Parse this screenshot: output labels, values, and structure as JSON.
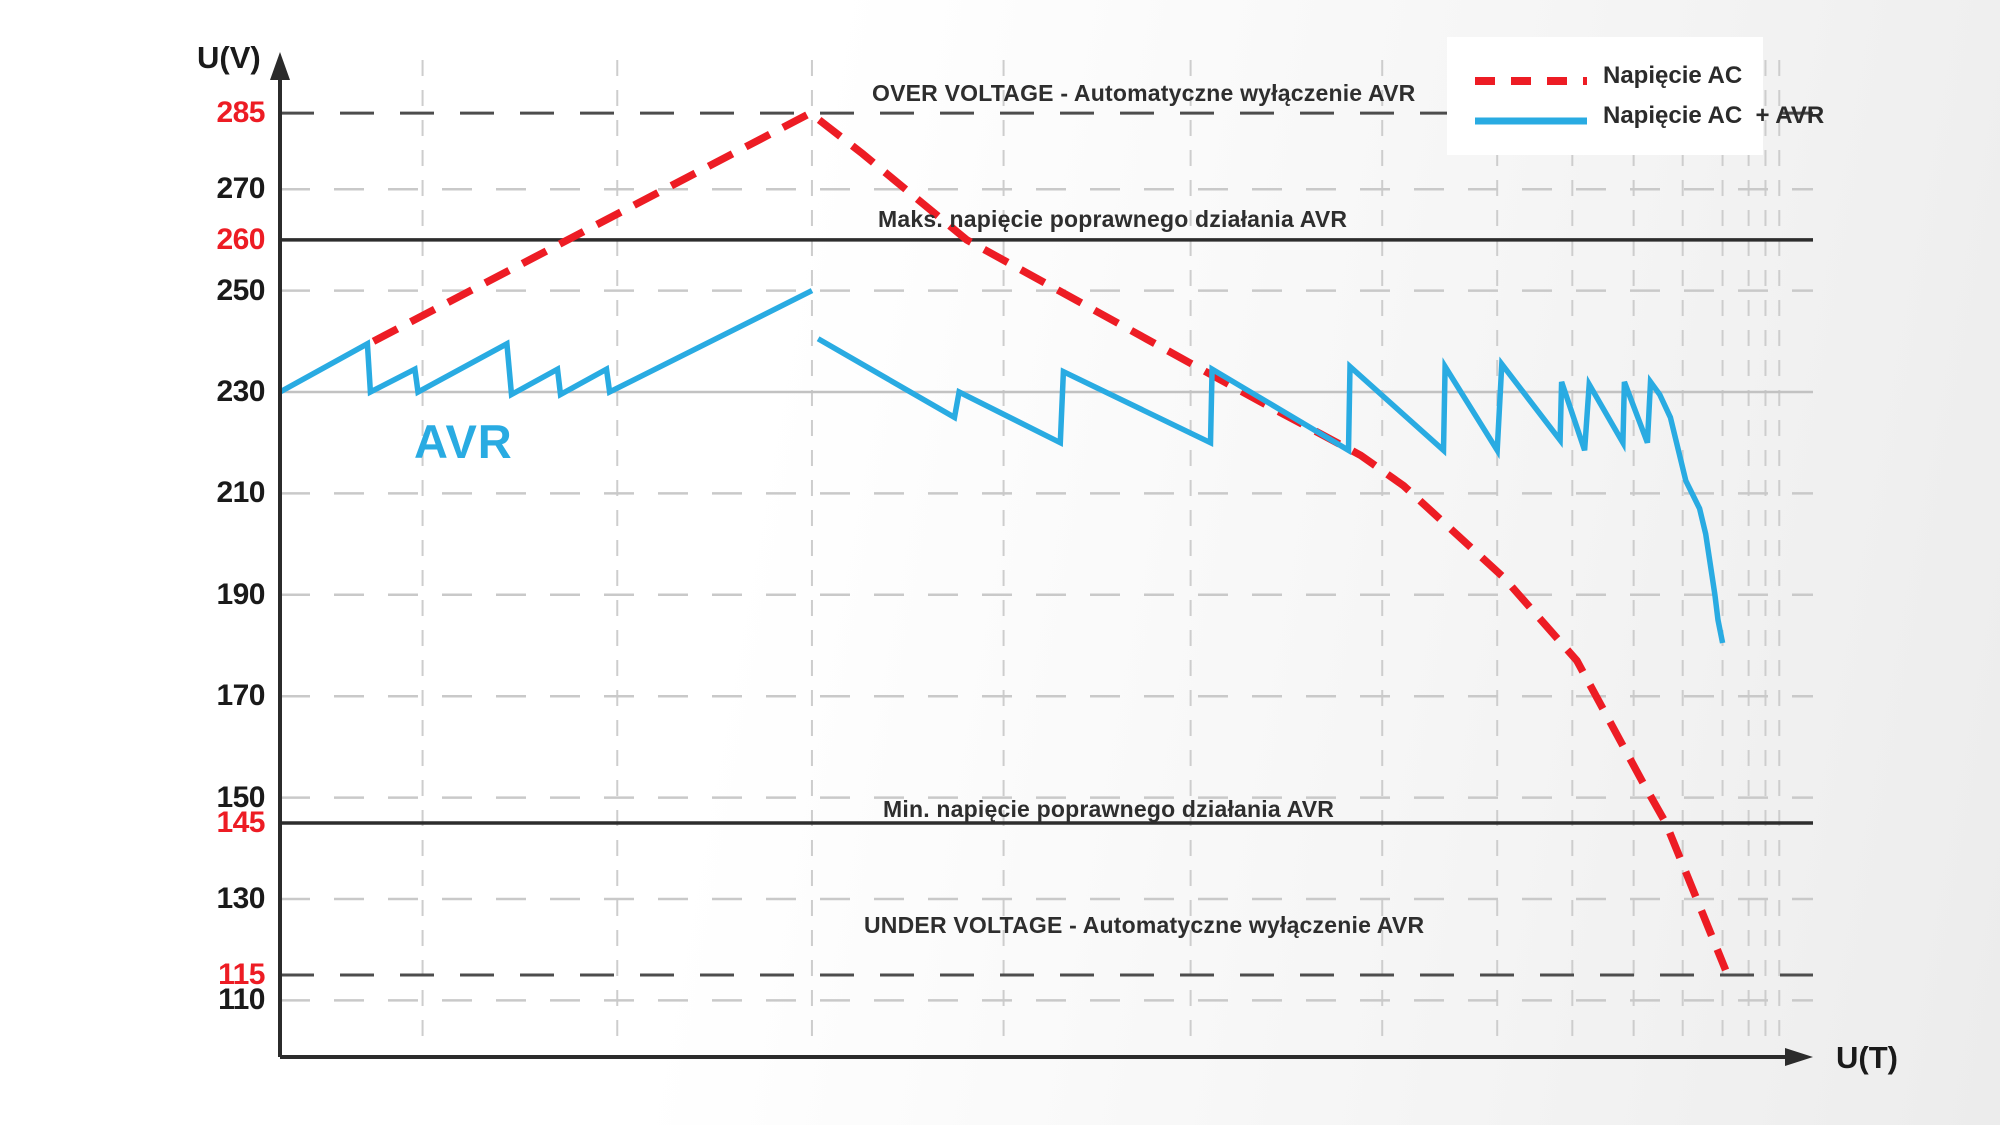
{
  "figure": {
    "ylabel": "U(V)",
    "xlabel": "U(T)",
    "avr_label": "AVR"
  },
  "annotations": {
    "over_voltage": "OVER VOLTAGE - Automatyczne wyłączenie AVR",
    "max_avr": "Maks. napięcie poprawnego działania AVR",
    "min_avr": "Min. napięcie poprawnego działania AVR",
    "under_voltage": "UNDER VOLTAGE - Automatyczne wyłączenie AVR"
  },
  "legend": {
    "items": [
      {
        "label": "Napięcie AC",
        "color": "#ed1c24",
        "style": "dashed"
      },
      {
        "label": "Napięcie AC  + AVR",
        "color": "#29abe2",
        "style": "solid"
      }
    ]
  },
  "colors": {
    "ac_red": "#ed1c24",
    "avr_blue": "#29abe2",
    "dark_line": "#2d2d2d",
    "dark_dash": "#4d4d4d",
    "light_grid": "#c9c9c9",
    "axis": "#2b2b2b"
  },
  "chart_data": {
    "type": "line",
    "title": "",
    "xlabel": "U(T)",
    "ylabel": "U(V)",
    "ylim": [
      100,
      295
    ],
    "x_unit": "percent of time axis (no units shown)",
    "grid": true,
    "legend_position": "top-right",
    "y_ticks": [
      {
        "value": 285,
        "emphasis": true
      },
      {
        "value": 270,
        "emphasis": false
      },
      {
        "value": 260,
        "emphasis": true
      },
      {
        "value": 250,
        "emphasis": false
      },
      {
        "value": 230,
        "emphasis": false
      },
      {
        "value": 210,
        "emphasis": false
      },
      {
        "value": 190,
        "emphasis": false
      },
      {
        "value": 170,
        "emphasis": false
      },
      {
        "value": 150,
        "emphasis": false
      },
      {
        "value": 145,
        "emphasis": true
      },
      {
        "value": 130,
        "emphasis": false
      },
      {
        "value": 115,
        "emphasis": true
      },
      {
        "value": 110,
        "emphasis": false
      }
    ],
    "h_lines": [
      {
        "v": 285,
        "style": "dark-dashed",
        "meaning": "over-voltage AVR cutoff"
      },
      {
        "v": 270,
        "style": "light-dashed"
      },
      {
        "v": 260,
        "style": "dark-solid",
        "meaning": "max correct AVR operation"
      },
      {
        "v": 250,
        "style": "light-dashed"
      },
      {
        "v": 230,
        "style": "light-solid",
        "meaning": "nominal voltage"
      },
      {
        "v": 210,
        "style": "light-dashed"
      },
      {
        "v": 190,
        "style": "light-dashed"
      },
      {
        "v": 170,
        "style": "light-dashed"
      },
      {
        "v": 150,
        "style": "light-dashed"
      },
      {
        "v": 145,
        "style": "dark-solid",
        "meaning": "min correct AVR operation"
      },
      {
        "v": 130,
        "style": "light-dashed"
      },
      {
        "v": 115,
        "style": "dark-dashed",
        "meaning": "under-voltage AVR cutoff"
      },
      {
        "v": 110,
        "style": "light-dashed"
      }
    ],
    "v_gridlines_t": [
      9.3,
      22.0,
      34.7,
      47.2,
      59.4,
      71.9,
      79.4,
      84.3,
      88.3,
      91.5,
      94.1,
      95.8,
      96.9,
      97.8
    ],
    "series": [
      {
        "name": "Napięcie AC",
        "color": "#ed1c24",
        "dashed": true,
        "segments": [
          [
            [
              6.1,
              240
            ],
            [
              34.6,
              285
            ],
            [
              38.0,
              277
            ],
            [
              44.8,
              260
            ],
            [
              52.0,
              248
            ],
            [
              59.2,
              236
            ],
            [
              64.0,
              228
            ],
            [
              70.5,
              217.5
            ],
            [
              73.3,
              211.5
            ],
            [
              79.8,
              193.5
            ],
            [
              84.6,
              177
            ],
            [
              88.9,
              153
            ],
            [
              90.4,
              145
            ],
            [
              94.3,
              116
            ]
          ]
        ]
      },
      {
        "name": "Napięcie AC + AVR",
        "color": "#29abe2",
        "dashed": false,
        "segments": [
          [
            [
              0,
              230
            ],
            [
              5.7,
              239.5
            ],
            [
              5.9,
              230
            ],
            [
              8.8,
              234.5
            ],
            [
              9.0,
              230
            ],
            [
              14.8,
              239.5
            ],
            [
              15.1,
              229.5
            ],
            [
              18.1,
              234.5
            ],
            [
              18.3,
              229.5
            ],
            [
              21.3,
              234.5
            ],
            [
              21.5,
              230
            ],
            [
              34.7,
              250
            ]
          ],
          [
            [
              35.1,
              240.5
            ],
            [
              44.0,
              225
            ],
            [
              44.3,
              230
            ],
            [
              50.9,
              220
            ],
            [
              51.1,
              234
            ],
            [
              60.7,
              220
            ],
            [
              60.8,
              234.5
            ],
            [
              69.7,
              218.5
            ],
            [
              69.8,
              235
            ],
            [
              75.9,
              218.5
            ],
            [
              76.0,
              235
            ],
            [
              79.4,
              218.5
            ],
            [
              79.7,
              235.5
            ],
            [
              83.5,
              220.5
            ],
            [
              83.6,
              232
            ],
            [
              85.1,
              218.5
            ],
            [
              85.4,
              231.5
            ],
            [
              87.6,
              220
            ],
            [
              87.7,
              232
            ],
            [
              89.2,
              220
            ],
            [
              89.4,
              232
            ],
            [
              90.0,
              229.5
            ],
            [
              90.7,
              225
            ],
            [
              91.7,
              212.5
            ],
            [
              92.6,
              207
            ],
            [
              93.0,
              202
            ],
            [
              93.3,
              196
            ],
            [
              93.6,
              190
            ],
            [
              93.8,
              185
            ],
            [
              94.1,
              180.5
            ]
          ]
        ]
      }
    ]
  }
}
